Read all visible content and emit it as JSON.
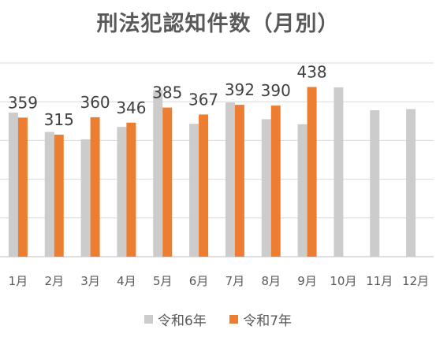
{
  "chart_data": {
    "type": "bar",
    "title": "刑法犯認知件数（月別）",
    "categories": [
      "1月",
      "2月",
      "3月",
      "4月",
      "5月",
      "6月",
      "7月",
      "8月",
      "9月",
      "10月",
      "11月",
      "12月"
    ],
    "series": [
      {
        "name": "令和6年",
        "color": "#cccccc",
        "values": [
          372,
          322,
          303,
          335,
          430,
          343,
          398,
          355,
          342,
          437,
          378,
          381
        ]
      },
      {
        "name": "令和7年",
        "color": "#ed7d31",
        "values": [
          359,
          315,
          360,
          346,
          385,
          367,
          392,
          390,
          438,
          null,
          null,
          null
        ],
        "data_labels": [
          "359",
          "315",
          "360",
          "346",
          "385",
          "367",
          "392",
          "390",
          "438"
        ]
      }
    ],
    "ylim": [
      0,
      500
    ],
    "grid": true,
    "legend_position": "bottom"
  }
}
